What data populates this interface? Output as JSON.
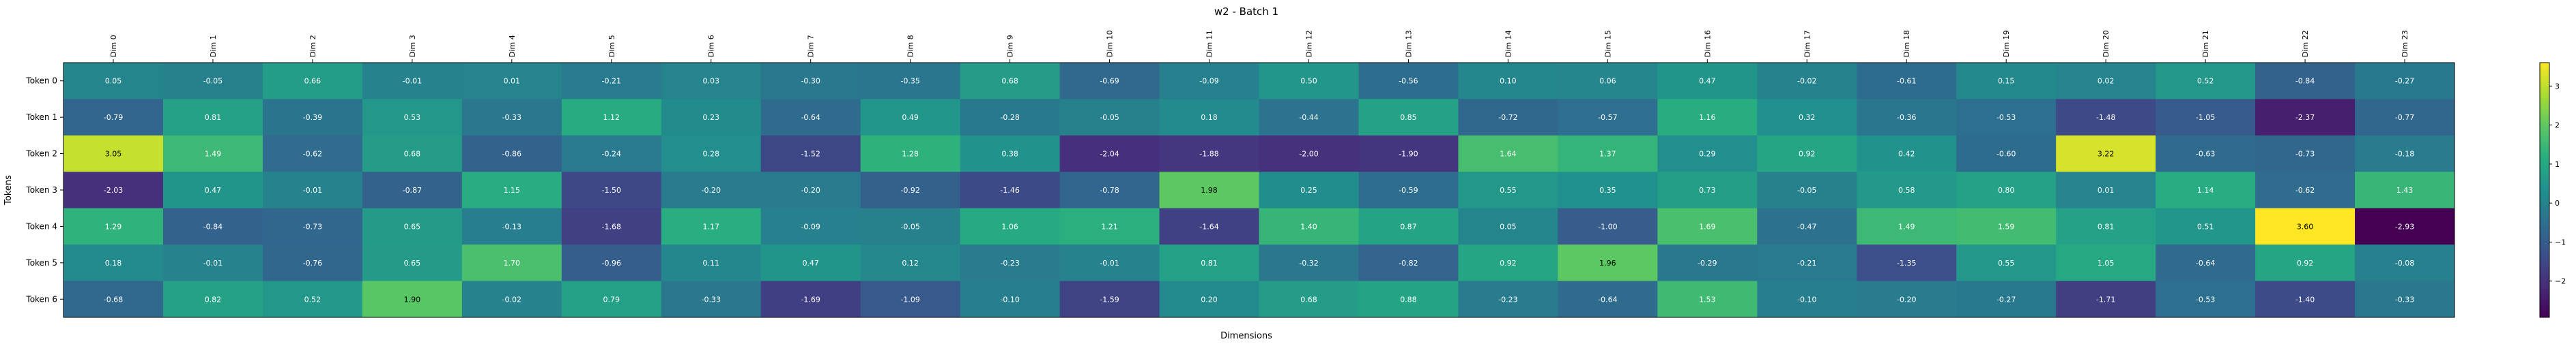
{
  "chart_data": {
    "type": "heatmap",
    "title": "w2 - Batch 1",
    "xlabel": "Dimensions",
    "ylabel": "Tokens",
    "x_categories": [
      "Dim 0",
      "Dim 1",
      "Dim 2",
      "Dim 3",
      "Dim 4",
      "Dim 5",
      "Dim 6",
      "Dim 7",
      "Dim 8",
      "Dim 9",
      "Dim 10",
      "Dim 11",
      "Dim 12",
      "Dim 13",
      "Dim 14",
      "Dim 15",
      "Dim 16",
      "Dim 17",
      "Dim 18",
      "Dim 19",
      "Dim 20",
      "Dim 21",
      "Dim 22",
      "Dim 23"
    ],
    "y_categories": [
      "Token 0",
      "Token 1",
      "Token 2",
      "Token 3",
      "Token 4",
      "Token 5",
      "Token 6"
    ],
    "values": [
      [
        0.05,
        -0.05,
        0.66,
        -0.01,
        0.01,
        -0.21,
        0.03,
        -0.3,
        -0.35,
        0.68,
        -0.69,
        -0.09,
        0.5,
        -0.56,
        0.1,
        0.06,
        0.47,
        -0.02,
        -0.61,
        0.15,
        0.02,
        0.52,
        -0.84,
        -0.27
      ],
      [
        -0.79,
        0.81,
        -0.39,
        0.53,
        -0.33,
        1.12,
        0.23,
        -0.64,
        0.49,
        -0.28,
        -0.05,
        0.18,
        -0.44,
        0.85,
        -0.72,
        -0.57,
        1.16,
        0.32,
        -0.36,
        -0.53,
        -1.48,
        -1.05,
        -2.37,
        -0.77
      ],
      [
        3.05,
        1.49,
        -0.62,
        0.68,
        -0.86,
        -0.24,
        0.28,
        -1.52,
        1.28,
        0.38,
        -2.04,
        -1.88,
        -2.0,
        -1.9,
        1.64,
        1.37,
        0.29,
        0.92,
        0.42,
        -0.6,
        3.22,
        -0.63,
        -0.73,
        -0.18
      ],
      [
        -2.03,
        0.47,
        -0.01,
        -0.87,
        1.15,
        -1.5,
        -0.2,
        -0.2,
        -0.92,
        -1.46,
        -0.78,
        1.98,
        0.25,
        -0.59,
        0.55,
        0.35,
        0.73,
        -0.05,
        0.58,
        0.8,
        0.01,
        1.14,
        -0.62,
        1.43
      ],
      [
        1.29,
        -0.84,
        -0.73,
        0.65,
        -0.13,
        -1.68,
        1.17,
        -0.09,
        -0.05,
        1.06,
        1.21,
        -1.64,
        1.4,
        0.87,
        0.05,
        -1.0,
        1.69,
        -0.47,
        1.49,
        1.59,
        0.81,
        0.51,
        3.6,
        -2.93
      ],
      [
        0.18,
        -0.01,
        -0.76,
        0.65,
        1.7,
        -0.96,
        0.11,
        0.47,
        0.12,
        -0.23,
        -0.01,
        0.81,
        -0.32,
        -0.82,
        0.92,
        1.96,
        -0.29,
        -0.21,
        -1.35,
        0.55,
        1.05,
        -0.64,
        0.92,
        -0.08
      ],
      [
        -0.68,
        0.82,
        0.52,
        1.9,
        -0.02,
        0.79,
        -0.33,
        -1.69,
        -1.09,
        -0.1,
        -1.59,
        0.2,
        0.68,
        0.88,
        -0.23,
        -0.64,
        1.53,
        -0.1,
        -0.2,
        -0.27,
        -1.71,
        -0.53,
        -1.4,
        -0.33
      ]
    ],
    "colormap": "viridis",
    "colorbar_ticks": [
      -2,
      -1,
      0,
      1,
      2,
      3
    ],
    "color_range": [
      -2.93,
      3.6
    ],
    "annotations_shown": true,
    "grid": false
  }
}
